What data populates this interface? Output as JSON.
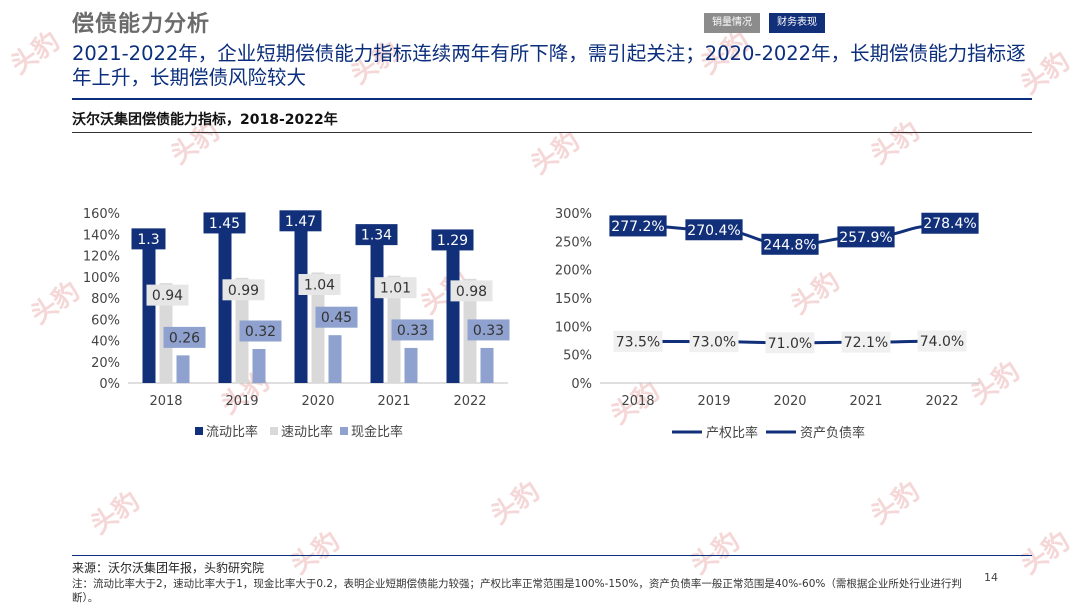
{
  "header": {
    "page_title": "偿债能力分析",
    "tabs": [
      {
        "label": "销量情况"
      },
      {
        "label": "财务表现"
      }
    ],
    "headline": "2021-2022年，企业短期偿债能力指标连续两年有所下降，需引起关注；2020-2022年，长期偿债能力指标逐年上升，长期偿债风险较大"
  },
  "section_title": "沃尔沃集团偿债能力指标，2018-2022年",
  "watermark_text": "头豹",
  "colors": {
    "navy": "#12307a",
    "gray": "#d9d9d9",
    "lilac": "#8fa1cf",
    "tab_gray": "#8c8c8c"
  },
  "chart_data": [
    {
      "type": "bar",
      "categories": [
        "2018",
        "2019",
        "2020",
        "2021",
        "2022"
      ],
      "ylim": [
        0,
        1.6
      ],
      "yticks": [
        "0%",
        "20%",
        "40%",
        "60%",
        "80%",
        "100%",
        "120%",
        "140%",
        "160%"
      ],
      "series": [
        {
          "name": "流动比率",
          "values": [
            1.3,
            1.45,
            1.47,
            1.34,
            1.29
          ],
          "labels": [
            "1.3",
            "1.45",
            "1.47",
            "1.34",
            "1.29"
          ]
        },
        {
          "name": "速动比率",
          "values": [
            0.94,
            0.99,
            1.04,
            1.01,
            0.98
          ],
          "labels": [
            "0.94",
            "0.99",
            "1.04",
            "1.01",
            "0.98"
          ]
        },
        {
          "name": "现金比率",
          "values": [
            0.26,
            0.32,
            0.45,
            0.33,
            0.33
          ],
          "labels": [
            "0.26",
            "0.32",
            "0.45",
            "0.33",
            "0.33"
          ]
        }
      ],
      "legend": "bottom"
    },
    {
      "type": "line",
      "categories": [
        "2018",
        "2019",
        "2020",
        "2021",
        "2022"
      ],
      "ylim": [
        0,
        3.0
      ],
      "yticks": [
        "0%",
        "50%",
        "100%",
        "150%",
        "200%",
        "250%",
        "300%"
      ],
      "series": [
        {
          "name": "产权比率",
          "values": [
            2.772,
            2.704,
            2.448,
            2.579,
            2.784
          ],
          "labels": [
            "277.2%",
            "270.4%",
            "244.8%",
            "257.9%",
            "278.4%"
          ]
        },
        {
          "name": "资产负债率",
          "values": [
            0.735,
            0.73,
            0.71,
            0.721,
            0.74
          ],
          "labels": [
            "73.5%",
            "73.0%",
            "71.0%",
            "72.1%",
            "74.0%"
          ]
        }
      ],
      "legend": "bottom"
    }
  ],
  "footer": {
    "source": "来源：沃尔沃集团年报，头豹研究院",
    "note": "注：流动比率大于2，速动比率大于1，现金比率大于0.2，表明企业短期偿债能力较强；产权比率正常范围是100%-150%，资产负债率一般正常范围是40%-60%（需根据企业所处行业进行判断）。",
    "page_number": "14"
  }
}
